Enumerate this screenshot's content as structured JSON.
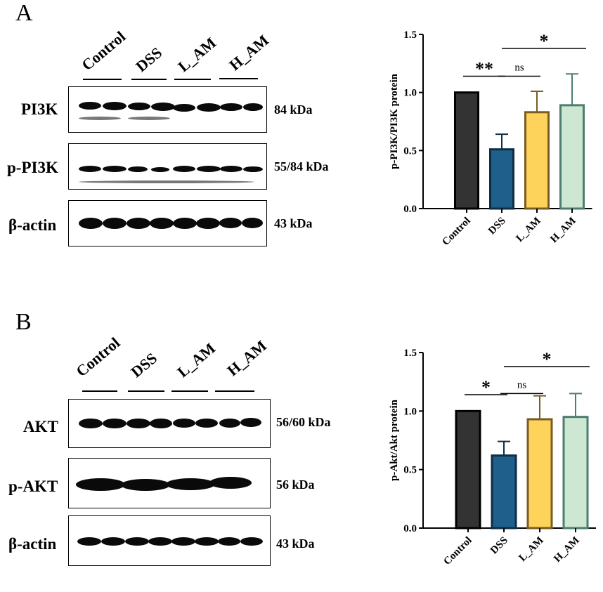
{
  "panel_a": {
    "letter": "A",
    "lanes": [
      "Control",
      "DSS",
      "L_AM",
      "H_AM"
    ],
    "blots": [
      {
        "label": "PI3K",
        "size": "84 kDa"
      },
      {
        "label": "p-PI3K",
        "size": "55/84 kDa"
      },
      {
        "label": "β-actin",
        "size": "43 kDa"
      }
    ]
  },
  "panel_b": {
    "letter": "B",
    "lanes": [
      "Control",
      "DSS",
      "L_AM",
      "H_AM"
    ],
    "blots": [
      {
        "label": "AKT",
        "size": "56/60 kDa"
      },
      {
        "label": "p-AKT",
        "size": "56 kDa"
      },
      {
        "label": "β-actin",
        "size": "43 kDa"
      }
    ]
  },
  "chart_data": [
    {
      "type": "bar",
      "categories": [
        "Control",
        "DSS",
        "L_AM",
        "H_AM"
      ],
      "values": [
        1.0,
        0.51,
        0.83,
        0.89
      ],
      "errors": [
        0,
        0.13,
        0.18,
        0.27
      ],
      "colors": [
        "#333333",
        "#1f5f8b",
        "#fdd35c",
        "#cde7d3"
      ],
      "edge_colors": [
        "#000000",
        "#0f2d45",
        "#7a5c20",
        "#4d7d6e"
      ],
      "ylabel": "p-PI3K/PI3K protein",
      "ylim": [
        0,
        1.5
      ],
      "yticks": [
        "0.0",
        "0.5",
        "1.0",
        "1.5"
      ],
      "annotations": [
        {
          "text": "**",
          "from": "Control",
          "to": "DSS"
        },
        {
          "text": "ns",
          "from": "DSS",
          "to": "L_AM"
        },
        {
          "text": "*",
          "from": "DSS",
          "to": "H_AM"
        }
      ]
    },
    {
      "type": "bar",
      "categories": [
        "Control",
        "DSS",
        "L_AM",
        "H_AM"
      ],
      "values": [
        1.0,
        0.62,
        0.93,
        0.95
      ],
      "errors": [
        0,
        0.12,
        0.2,
        0.2
      ],
      "colors": [
        "#333333",
        "#1f5f8b",
        "#fdd35c",
        "#cde7d3"
      ],
      "edge_colors": [
        "#000000",
        "#0f2d45",
        "#7a5c20",
        "#4d7d6e"
      ],
      "ylabel": "p-Akt/Akt protein",
      "ylim": [
        0,
        1.5
      ],
      "yticks": [
        "0.0",
        "0.5",
        "1.0",
        "1.5"
      ],
      "annotations": [
        {
          "text": "*",
          "from": "Control",
          "to": "DSS"
        },
        {
          "text": "ns",
          "from": "DSS",
          "to": "L_AM"
        },
        {
          "text": "*",
          "from": "DSS",
          "to": "H_AM"
        }
      ]
    }
  ]
}
